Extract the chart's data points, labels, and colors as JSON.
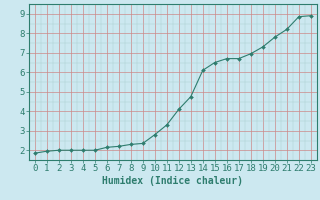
{
  "x": [
    0,
    1,
    2,
    3,
    4,
    5,
    6,
    7,
    8,
    9,
    10,
    11,
    12,
    13,
    14,
    15,
    16,
    17,
    18,
    19,
    20,
    21,
    22,
    23
  ],
  "y": [
    1.85,
    1.95,
    2.0,
    2.0,
    2.0,
    2.0,
    2.15,
    2.2,
    2.3,
    2.35,
    2.8,
    3.3,
    4.1,
    4.75,
    6.1,
    6.5,
    6.7,
    6.7,
    6.95,
    7.3,
    7.8,
    8.2,
    8.85,
    8.9
  ],
  "xlabel": "Humidex (Indice chaleur)",
  "xlim": [
    -0.5,
    23.5
  ],
  "ylim": [
    1.5,
    9.5
  ],
  "yticks": [
    2,
    3,
    4,
    5,
    6,
    7,
    8,
    9
  ],
  "xticks": [
    0,
    1,
    2,
    3,
    4,
    5,
    6,
    7,
    8,
    9,
    10,
    11,
    12,
    13,
    14,
    15,
    16,
    17,
    18,
    19,
    20,
    21,
    22,
    23
  ],
  "line_color": "#2e7d6e",
  "marker_color": "#2e7d6e",
  "bg_color": "#cce8f0",
  "grid_color_major": "#cc8888",
  "grid_color_minor": "#aacccc",
  "axes_color": "#2e7d6e",
  "label_color": "#2e7d6e",
  "tick_color": "#2e7d6e",
  "xlabel_fontsize": 7,
  "tick_fontsize": 6.5
}
